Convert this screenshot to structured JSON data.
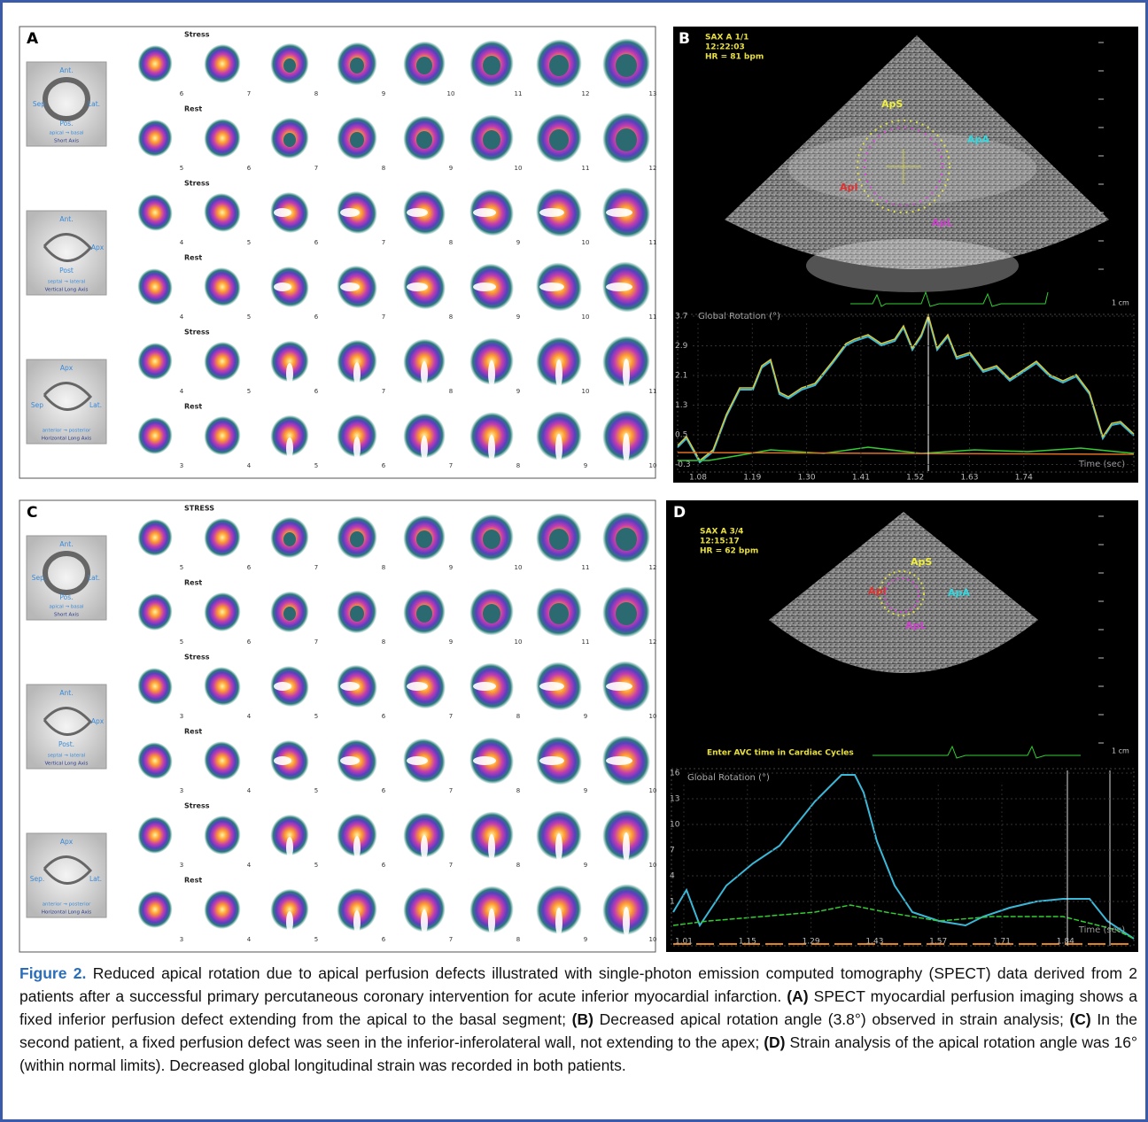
{
  "spect_panels": [
    {
      "label": "A",
      "rows": [
        {
          "condition": "Stress",
          "slices": [
            "6",
            "7",
            "8",
            "9",
            "10",
            "11",
            "12",
            "13"
          ]
        },
        {
          "condition": "Rest",
          "slices": [
            "5",
            "6",
            "7",
            "8",
            "9",
            "10",
            "11",
            "12"
          ]
        },
        {
          "condition": "Stress",
          "slices": [
            "4",
            "5",
            "6",
            "7",
            "8",
            "9",
            "10",
            "11"
          ]
        },
        {
          "condition": "Rest",
          "slices": [
            "4",
            "5",
            "6",
            "7",
            "8",
            "9",
            "10",
            "11"
          ]
        },
        {
          "condition": "Stress",
          "slices": [
            "4",
            "5",
            "6",
            "7",
            "8",
            "9",
            "10",
            "11"
          ]
        },
        {
          "condition": "Rest",
          "slices": [
            "3",
            "4",
            "5",
            "6",
            "7",
            "8",
            "9",
            "10"
          ]
        }
      ],
      "schematics": [
        {
          "labels": [
            "Ant.",
            "Sep",
            "Lat.",
            "Pos.",
            "apical → basal",
            "Short Axis"
          ]
        },
        {
          "labels": [
            "Ant.",
            "Apx",
            "Post",
            "septal → lateral",
            "Vertical Long Axis"
          ]
        },
        {
          "labels": [
            "Apx",
            "Sep",
            "Lat.",
            "anterior → posterior",
            "Horizontal Long Axis"
          ]
        }
      ]
    },
    {
      "label": "C",
      "rows": [
        {
          "condition": "STRESS",
          "slices": [
            "5",
            "6",
            "7",
            "8",
            "9",
            "10",
            "11",
            "12"
          ]
        },
        {
          "condition": "Rest",
          "slices": [
            "5",
            "6",
            "7",
            "8",
            "9",
            "10",
            "11",
            "12"
          ]
        },
        {
          "condition": "Stress",
          "slices": [
            "3",
            "4",
            "5",
            "6",
            "7",
            "8",
            "9",
            "10"
          ]
        },
        {
          "condition": "Rest",
          "slices": [
            "3",
            "4",
            "5",
            "6",
            "7",
            "8",
            "9",
            "10"
          ]
        },
        {
          "condition": "Stress",
          "slices": [
            "3",
            "4",
            "5",
            "6",
            "7",
            "8",
            "9",
            "10"
          ]
        },
        {
          "condition": "Rest",
          "slices": [
            "3",
            "4",
            "5",
            "6",
            "7",
            "8",
            "9",
            "10"
          ]
        }
      ],
      "schematics": [
        {
          "labels": [
            "Ant.",
            "Sep.",
            "Lat.",
            "Pos.",
            "apical → basal",
            "Short Axis"
          ]
        },
        {
          "labels": [
            "Ant.",
            "Apx",
            "Post.",
            "septal → lateral",
            "Vertical Long Axis"
          ]
        },
        {
          "labels": [
            "Apx",
            "Sep.",
            "Lat.",
            "anterior → posterior",
            "Horizontal Long Axis"
          ]
        }
      ]
    }
  ],
  "echo_panels": [
    {
      "label": "B",
      "header": [
        "SAX A 1/1",
        "12:22:03",
        "HR = 81 bpm"
      ],
      "segments": [
        "ApS",
        "ApA",
        "ApI",
        "ApL"
      ],
      "plot_title": "Global Rotation (°)",
      "x_label": "Time (sec)",
      "scale_bar": "1 cm",
      "yticks": [
        "3.7",
        "2.9",
        "2.1",
        "1.3",
        "0.5",
        "-0.3"
      ],
      "xticks": [
        "1.08",
        "1.19",
        "1.30",
        "1.41",
        "1.52",
        "1.63",
        "1.74"
      ]
    },
    {
      "label": "D",
      "header": [
        "SAX A 3/4",
        "12:15:17",
        "HR = 62 bpm"
      ],
      "segments": [
        "ApS",
        "ApA",
        "ApI",
        "ApL"
      ],
      "prompt": "Enter AVC time in Cardiac Cycles",
      "plot_title": "Global Rotation (°)",
      "x_label": "Time (sec)",
      "scale_bar": "1 cm",
      "yticks": [
        "16",
        "13",
        "10",
        "7",
        "4",
        "1"
      ],
      "xticks": [
        "1.01",
        "1.15",
        "1.29",
        "1.43",
        "1.57",
        "1.71",
        "1.84"
      ]
    }
  ],
  "caption": {
    "label": "Figure 2.",
    "segments": [
      {
        "text": " Reduced apical rotation due to apical perfusion defects illustrated with single-photon emission computed tomography (SPECT) data derived from 2 patients after a successful primary percutaneous coronary intervention for acute inferior myocardial infarction. ",
        "bold": false
      },
      {
        "text": "(A)",
        "bold": true
      },
      {
        "text": " SPECT myocardial perfusion imaging shows a fixed inferior perfusion defect extending from the apical to the basal segment; ",
        "bold": false
      },
      {
        "text": "(B)",
        "bold": true
      },
      {
        "text": " Decreased apical rotation angle (3.8°) observed in strain analysis; ",
        "bold": false
      },
      {
        "text": "(C)",
        "bold": true
      },
      {
        "text": " In the second patient, a fixed perfusion defect was seen in the inferior-inferolateral wall, not extending to the apex; ",
        "bold": false
      },
      {
        "text": "(D)",
        "bold": true
      },
      {
        "text": " Strain analysis of the apical rotation angle was 16° (within normal limits). Decreased global longitudinal strain was recorded in both patients.",
        "bold": false
      }
    ]
  }
}
